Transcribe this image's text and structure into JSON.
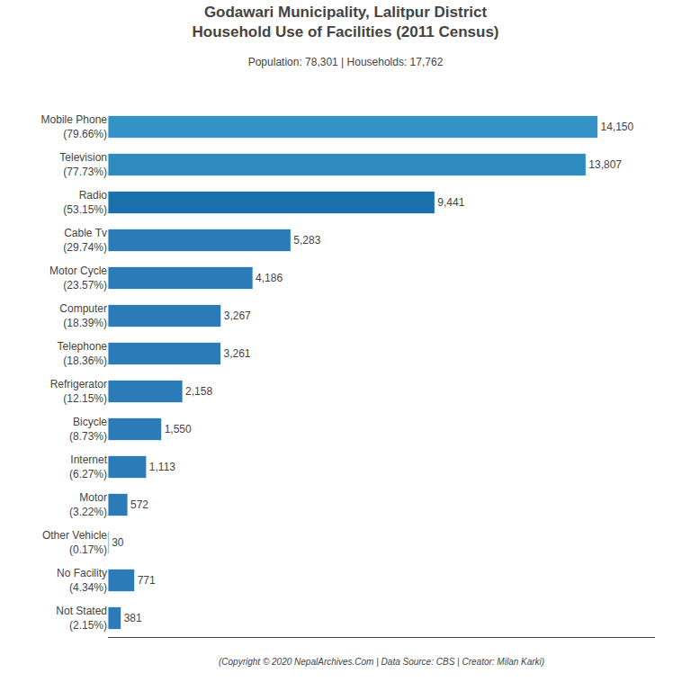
{
  "chart_data": {
    "type": "bar",
    "orientation": "horizontal",
    "title": "Godawari Municipality, Lalitpur District\nHousehold Use of Facilities (2011 Census)",
    "subtitle": "Population: 78,301 | Households: 17,762",
    "annotations": [
      "(Copyright © 2020 NepalArchives.Com | Data Source: CBS | Creator: Milan Karki)"
    ],
    "categories": [
      "Not Stated\n(2.15%)",
      "No Facility\n(4.34%)",
      "Other Vehicle\n(0.17%)",
      "Motor\n(3.22%)",
      "Internet\n(6.27%)",
      "Bicycle\n(8.73%)",
      "Refrigerator\n(12.15%)",
      "Telephone\n(18.36%)",
      "Computer\n(18.39%)",
      "Motor Cycle\n(23.57%)",
      "Cable Tv\n(29.74%)",
      "Radio\n(53.15%)",
      "Television\n(77.73%)",
      "Mobile Phone\n(79.66%)"
    ],
    "values": [
      381,
      771,
      30,
      572,
      1113,
      1550,
      2158,
      3261,
      3267,
      4186,
      5283,
      9441,
      13807,
      14150
    ],
    "value_labels": [
      "381",
      "771",
      "30",
      "572",
      "1,113",
      "1,550",
      "2,158",
      "3,261",
      "3,267",
      "4,186",
      "5,283",
      "9,441",
      "13,807",
      "14,150"
    ],
    "colors": [
      "#2B7BB9",
      "#2B7BB9",
      "#2B7BB9",
      "#2B7BB9",
      "#2B7BB9",
      "#2B7BB9",
      "#2B7BB9",
      "#2B7BB9",
      "#2B7BB9",
      "#2B7BB9",
      "#2B7BB9",
      "#1A6FAD",
      "#2E8BC0",
      "#3492C7"
    ],
    "xlim": [
      0,
      15800
    ],
    "data_labels": true,
    "tick_labels": "y",
    "grid": false
  }
}
